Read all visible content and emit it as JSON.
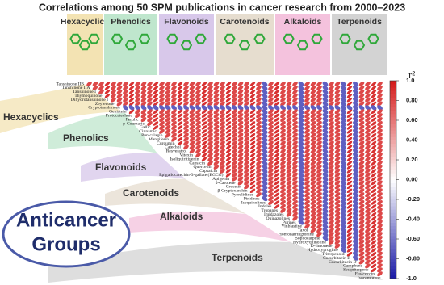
{
  "chart_data": {
    "type": "corrplot",
    "title": "Correlations among 50 SPM publications in cancer research from 2000–2023",
    "groups": [
      {
        "name": "Hexacyclics",
        "color": "#f3e3b3"
      },
      {
        "name": "Phenolics",
        "color": "#bfe6cd"
      },
      {
        "name": "Flavonoids",
        "color": "#d8c8ea"
      },
      {
        "name": "Carotenoids",
        "color": "#e6ddcf"
      },
      {
        "name": "Alkaloids",
        "color": "#f4c2dd"
      },
      {
        "name": "Terpenoids",
        "color": "#d3d3d3"
      }
    ],
    "center_label": [
      "Anticancer",
      "Groups"
    ],
    "labels": [
      "Tanshinone IIB",
      "Tanshinone IIA",
      "Tanshinone I",
      "Thymoquinone",
      "Dihydrotanshinone I",
      "Zeylenone",
      "Cryptotanshinone",
      "Genistein",
      "Protocatechuic",
      "Ferulic",
      "p-Coumaric",
      "Gallic",
      "Cinnamic",
      "Punicalagin",
      "Mangiferin",
      "Curcumin",
      "Catechol",
      "Resveratrol",
      "Vitexin",
      "Isoliquiritigenin",
      "Capsicin",
      "Quercetin",
      "Capsaicin",
      "Epigallocatechin-3-gallate (EGCG)",
      "Apigenin",
      "β-Carotene",
      "Crocetin",
      "β-Cryptoxanthin",
      "Pyrrolidines",
      "Piridines",
      "Isoquinolines",
      "Indoles",
      "Tropanes",
      "Imidazoles",
      "Quinazolines",
      "Purines",
      "Vinblastine",
      "Taxol",
      "Homoharringtonine",
      "Sophocarpine",
      "Hydroxyquinoline",
      "D-limonene",
      "Hydroxyprogline",
      "Triterpenoid",
      "Cucurbitacin B",
      "Cucurbitacin D",
      "Camphene",
      "Sesquiterpene",
      "Fusicoccin",
      "Isocembrene"
    ],
    "values": [
      [
        0.8,
        0.8,
        0.8,
        0.9,
        0.8,
        0.8,
        0.8,
        0.9,
        0.8,
        0.8,
        0.8,
        0.9,
        0.8,
        0.8,
        0.8,
        0.9,
        0.8,
        0.8,
        0.8,
        0.9,
        0.8,
        0.8,
        0.8,
        0.9,
        0.8,
        0.8,
        0.8,
        0.9,
        0.8,
        -0.7,
        0.8,
        0.9,
        0.8,
        0.8,
        0.8,
        -0.7,
        0.8,
        0.8,
        0.8,
        -0.7,
        0.8,
        0.8,
        -0.7,
        0.9,
        -0.7,
        0.8,
        0.8,
        0.9,
        0.8
      ],
      [
        0.8,
        0.8,
        0.9,
        0.8,
        0.8,
        0.8,
        0.9,
        0.8,
        0.8,
        0.8,
        0.9,
        0.8,
        0.8,
        0.8,
        0.9,
        0.8,
        0.8,
        0.8,
        0.9,
        0.8,
        0.8,
        0.8,
        0.9,
        0.8,
        0.8,
        0.8,
        0.9,
        0.8,
        -0.7,
        0.8,
        0.9,
        0.8,
        0.8,
        0.8,
        -0.7,
        0.8,
        0.8,
        0.8,
        -0.7,
        0.8,
        0.8,
        -0.7,
        0.9,
        -0.7,
        0.8,
        0.8,
        0.9,
        0.8
      ],
      [
        0.8,
        0.9,
        0.8,
        0.8,
        0.8,
        0.9,
        0.8,
        0.8,
        0.8,
        0.9,
        0.8,
        0.8,
        0.8,
        0.9,
        0.8,
        0.8,
        0.8,
        0.9,
        0.8,
        0.8,
        0.8,
        0.9,
        0.8,
        0.8,
        0.8,
        0.9,
        0.8,
        -0.7,
        0.8,
        0.9,
        0.8,
        0.8,
        0.8,
        -0.7,
        0.8,
        0.8,
        0.8,
        -0.7,
        0.8,
        0.8,
        -0.7,
        0.9,
        -0.7,
        0.8,
        0.8,
        0.9,
        0.8
      ],
      [
        0.9,
        0.8,
        0.8,
        0.8,
        0.9,
        0.8,
        0.8,
        0.8,
        0.9,
        0.8,
        0.8,
        0.8,
        0.9,
        0.8,
        0.8,
        0.8,
        0.9,
        0.8,
        0.8,
        0.8,
        0.9,
        0.8,
        0.8,
        0.8,
        0.9,
        0.8,
        -0.7,
        0.8,
        0.9,
        0.8,
        0.8,
        0.8,
        -0.7,
        0.8,
        0.8,
        0.8,
        -0.7,
        0.8,
        0.8,
        -0.7,
        0.9,
        -0.7,
        0.8,
        0.8,
        0.9,
        0.8
      ],
      [
        0.8,
        0.8,
        0.8,
        0.9,
        0.8,
        0.8,
        0.8,
        0.9,
        0.8,
        0.8,
        0.8,
        0.9,
        0.8,
        0.8,
        0.8,
        0.9,
        0.8,
        0.8,
        0.8,
        0.9,
        0.8,
        0.8,
        0.8,
        0.9,
        0.8,
        -0.7,
        0.8,
        0.9,
        0.8,
        0.8,
        0.8,
        -0.7,
        0.8,
        0.8,
        0.8,
        -0.7,
        0.8,
        0.8,
        -0.7,
        0.9,
        -0.7,
        0.8,
        0.8,
        0.9,
        0.8
      ],
      [
        0.8,
        0.8,
        0.9,
        0.8,
        0.8,
        0.8,
        0.9,
        0.8,
        0.8,
        0.8,
        0.9,
        0.8,
        0.8,
        0.8,
        0.9,
        0.8,
        0.8,
        0.8,
        0.9,
        0.8,
        0.8,
        0.8,
        0.9,
        0.8,
        -0.7,
        0.8,
        0.9,
        0.8,
        0.8,
        0.8,
        -0.7,
        0.8,
        0.8,
        0.8,
        -0.7,
        0.8,
        0.8,
        -0.7,
        0.9,
        -0.7,
        0.8,
        0.8,
        0.9,
        0.8
      ],
      [
        -0.7,
        -0.7,
        -0.7,
        -0.7,
        -0.7,
        -0.7,
        -0.7,
        -0.7,
        -0.7,
        -0.7,
        -0.7,
        -0.7,
        -0.7,
        -0.7,
        -0.7,
        -0.7,
        -0.7,
        -0.7,
        -0.7,
        -0.7,
        -0.7,
        -0.7,
        -0.7,
        -0.7,
        -0.7,
        -0.7,
        -0.7,
        -0.7,
        -0.7,
        -0.7,
        -0.7,
        -0.7,
        -0.7,
        -0.7,
        -0.7,
        -0.7,
        -0.7,
        -0.7,
        -0.7,
        -0.7,
        -0.7,
        -0.7,
        -0.7
      ],
      [
        0.9,
        0.8,
        0.8,
        0.8,
        0.9,
        0.8,
        0.8,
        0.8,
        0.9,
        0.8,
        0.8,
        0.8,
        0.9,
        0.8,
        0.8,
        0.8,
        0.9,
        0.8,
        0.8,
        0.8,
        0.9,
        0.8,
        -0.7,
        0.8,
        0.9,
        0.8,
        0.8,
        0.8,
        -0.7,
        0.8,
        0.8,
        0.8,
        -0.7,
        0.8,
        0.8,
        -0.7,
        0.9,
        -0.7,
        0.8,
        0.8,
        0.9,
        0.8
      ],
      [
        0.8,
        0.8,
        0.8,
        0.9,
        0.8,
        0.8,
        0.8,
        0.9,
        0.8,
        0.8,
        0.8,
        0.9,
        0.8,
        0.8,
        0.8,
        0.9,
        0.8,
        0.8,
        0.8,
        0.9,
        0.8,
        -0.7,
        0.8,
        0.9,
        0.8,
        0.8,
        0.8,
        -0.7,
        0.8,
        0.8,
        0.8,
        -0.7,
        0.8,
        0.8,
        -0.7,
        0.9,
        -0.7,
        0.8,
        0.8,
        0.9,
        0.8
      ],
      [
        0.8,
        0.8,
        0.9,
        0.8,
        0.8,
        0.8,
        0.9,
        0.8,
        0.8,
        0.8,
        0.9,
        0.8,
        0.8,
        0.8,
        0.9,
        0.8,
        0.8,
        0.8,
        0.9,
        0.8,
        -0.7,
        0.8,
        0.9,
        0.8,
        0.8,
        0.8,
        -0.7,
        0.8,
        0.8,
        0.8,
        -0.7,
        0.8,
        0.8,
        -0.7,
        0.9,
        -0.7,
        0.8,
        0.8,
        0.9,
        0.8
      ],
      [
        0.8,
        0.9,
        0.8,
        0.8,
        0.8,
        0.9,
        0.8,
        0.8,
        0.8,
        0.9,
        0.8,
        0.8,
        0.8,
        0.9,
        0.8,
        0.8,
        0.8,
        0.9,
        0.8,
        -0.7,
        0.8,
        0.9,
        0.8,
        0.8,
        0.8,
        -0.7,
        0.8,
        0.8,
        0.8,
        -0.7,
        0.8,
        0.8,
        -0.7,
        0.9,
        -0.7,
        0.8,
        0.8,
        0.9,
        0.8
      ],
      [
        0.9,
        0.8,
        0.8,
        0.8,
        0.9,
        0.8,
        0.8,
        0.8,
        0.9,
        0.8,
        0.8,
        0.8,
        0.9,
        0.8,
        0.8,
        0.8,
        0.9,
        0.8,
        -0.7,
        0.8,
        0.9,
        0.8,
        0.8,
        0.8,
        -0.7,
        0.8,
        0.8,
        0.8,
        -0.7,
        0.8,
        0.8,
        -0.7,
        0.9,
        -0.7,
        0.8,
        0.8,
        0.9,
        0.8
      ],
      [
        0.8,
        0.8,
        0.8,
        0.9,
        0.8,
        0.8,
        0.8,
        0.9,
        0.8,
        0.8,
        0.8,
        0.9,
        0.8,
        0.8,
        0.8,
        0.9,
        0.8,
        -0.7,
        0.8,
        0.9,
        0.8,
        0.8,
        0.8,
        -0.7,
        0.8,
        0.8,
        0.8,
        -0.7,
        0.8,
        0.8,
        -0.7,
        0.9,
        -0.7,
        0.8,
        0.8,
        0.9,
        0.8
      ],
      [
        0.8,
        0.8,
        0.9,
        0.8,
        0.8,
        0.8,
        0.9,
        0.8,
        0.8,
        0.8,
        0.9,
        0.8,
        0.8,
        0.8,
        0.9,
        0.8,
        -0.7,
        0.8,
        0.9,
        0.8,
        0.8,
        0.8,
        -0.7,
        0.8,
        0.8,
        0.8,
        -0.7,
        0.8,
        0.8,
        -0.7,
        0.9,
        -0.7,
        0.8,
        0.8,
        0.9,
        0.8
      ],
      [
        0.8,
        0.9,
        0.8,
        0.8,
        0.8,
        0.9,
        0.8,
        0.8,
        0.8,
        0.9,
        0.8,
        0.8,
        0.8,
        0.9,
        0.8,
        -0.7,
        0.8,
        0.9,
        0.8,
        0.8,
        0.8,
        -0.7,
        0.8,
        0.8,
        0.8,
        -0.7,
        0.8,
        0.8,
        -0.7,
        0.9,
        -0.7,
        0.8,
        0.8,
        0.9,
        0.8
      ],
      [
        0.9,
        0.8,
        0.8,
        0.8,
        0.9,
        0.8,
        0.8,
        0.8,
        0.9,
        0.8,
        0.8,
        0.8,
        0.9,
        0.8,
        -0.7,
        0.8,
        0.9,
        0.8,
        0.8,
        0.8,
        -0.7,
        0.8,
        0.8,
        0.8,
        -0.7,
        0.8,
        0.8,
        -0.7,
        0.9,
        -0.7,
        0.8,
        0.8,
        0.9,
        0.8
      ],
      [
        0.8,
        0.8,
        0.8,
        0.9,
        0.8,
        0.8,
        0.8,
        0.9,
        0.8,
        0.8,
        0.8,
        0.9,
        0.8,
        -0.7,
        0.8,
        0.9,
        0.8,
        0.8,
        0.8,
        -0.7,
        0.8,
        0.8,
        0.8,
        -0.7,
        0.8,
        0.8,
        -0.7,
        0.9,
        -0.7,
        0.8,
        0.8,
        0.9,
        0.8
      ],
      [
        0.8,
        0.8,
        0.9,
        0.8,
        0.8,
        0.8,
        0.9,
        0.8,
        0.8,
        0.8,
        0.9,
        0.8,
        -0.7,
        0.8,
        0.9,
        0.8,
        0.8,
        0.8,
        -0.7,
        0.8,
        0.8,
        0.8,
        -0.7,
        0.8,
        0.8,
        -0.7,
        0.9,
        -0.7,
        0.8,
        0.8,
        0.9,
        0.8
      ],
      [
        0.8,
        0.9,
        0.8,
        0.8,
        0.8,
        0.9,
        0.8,
        0.8,
        0.8,
        0.9,
        0.8,
        -0.7,
        0.8,
        0.9,
        0.8,
        0.8,
        0.8,
        -0.7,
        0.8,
        0.8,
        0.8,
        -0.7,
        0.8,
        0.8,
        -0.7,
        0.9,
        -0.7,
        0.8,
        0.8,
        0.9,
        0.8
      ],
      [
        0.9,
        0.8,
        0.8,
        0.8,
        0.9,
        0.8,
        0.8,
        0.8,
        0.9,
        0.8,
        -0.7,
        0.8,
        0.9,
        0.8,
        0.8,
        0.8,
        -0.7,
        0.8,
        0.8,
        0.8,
        -0.7,
        0.8,
        0.8,
        -0.7,
        0.9,
        -0.7,
        0.8,
        0.8,
        0.9,
        0.8
      ],
      [
        0.8,
        0.8,
        0.8,
        0.9,
        0.8,
        0.8,
        0.8,
        0.9,
        0.8,
        -0.7,
        0.8,
        0.9,
        0.8,
        0.8,
        0.8,
        -0.7,
        0.8,
        0.8,
        0.8,
        -0.7,
        0.8,
        0.8,
        -0.7,
        0.9,
        -0.7,
        0.8,
        0.8,
        0.9,
        0.8
      ],
      [
        0.8,
        0.8,
        0.9,
        0.8,
        0.8,
        0.8,
        0.9,
        0.8,
        -0.7,
        0.8,
        0.9,
        0.8,
        0.8,
        0.8,
        -0.7,
        0.8,
        0.8,
        0.8,
        -0.7,
        0.8,
        0.8,
        -0.7,
        0.9,
        -0.7,
        0.8,
        0.8,
        0.9,
        0.8
      ],
      [
        0.8,
        0.9,
        0.8,
        0.8,
        0.8,
        0.9,
        0.8,
        -0.7,
        0.8,
        0.9,
        0.8,
        0.8,
        0.8,
        -0.7,
        0.8,
        0.8,
        0.8,
        -0.7,
        0.8,
        0.8,
        -0.7,
        0.9,
        -0.7,
        0.8,
        0.8,
        0.9,
        0.8
      ],
      [
        0.9,
        0.8,
        0.8,
        0.8,
        0.9,
        0.8,
        -0.7,
        0.8,
        0.9,
        0.8,
        0.8,
        0.8,
        -0.7,
        0.8,
        0.8,
        0.8,
        -0.7,
        0.8,
        0.8,
        -0.7,
        0.9,
        -0.7,
        0.8,
        0.8,
        0.9,
        0.8
      ],
      [
        0.8,
        0.8,
        0.8,
        0.9,
        0.8,
        -0.7,
        0.8,
        0.9,
        0.8,
        0.8,
        0.8,
        -0.7,
        0.8,
        0.8,
        0.8,
        -0.7,
        0.8,
        0.8,
        -0.7,
        0.9,
        -0.7,
        0.8,
        0.8,
        0.9,
        0.8
      ],
      [
        0.8,
        0.8,
        0.9,
        0.8,
        -0.7,
        0.8,
        0.9,
        0.8,
        0.8,
        0.8,
        -0.7,
        0.8,
        0.8,
        0.8,
        -0.7,
        0.8,
        0.8,
        -0.7,
        0.9,
        -0.7,
        0.8,
        0.8,
        0.9,
        0.8
      ],
      [
        0.8,
        0.9,
        0.8,
        -0.7,
        0.8,
        0.9,
        0.8,
        0.8,
        0.8,
        -0.7,
        0.8,
        0.8,
        0.8,
        -0.7,
        0.8,
        0.8,
        -0.7,
        0.9,
        -0.7,
        0.8,
        0.8,
        0.9,
        0.8
      ],
      [
        0.9,
        0.8,
        -0.7,
        0.8,
        0.9,
        0.8,
        0.8,
        0.8,
        -0.7,
        0.8,
        0.8,
        0.8,
        -0.7,
        0.8,
        0.8,
        -0.7,
        0.9,
        -0.7,
        0.8,
        0.8,
        0.9,
        0.8
      ],
      [
        0.8,
        -0.7,
        0.8,
        0.9,
        0.8,
        0.8,
        0.8,
        -0.7,
        0.8,
        0.8,
        0.8,
        -0.7,
        0.8,
        0.8,
        -0.7,
        0.9,
        -0.7,
        0.8,
        0.8,
        0.9,
        0.8
      ],
      [
        -0.7,
        0.8,
        0.9,
        0.8,
        0.8,
        0.8,
        -0.7,
        0.8,
        0.8,
        0.8,
        -0.7,
        0.8,
        0.8,
        -0.7,
        0.9,
        -0.7,
        0.8,
        0.8,
        0.9,
        0.8
      ],
      [
        0.8,
        0.9,
        0.8,
        0.8,
        0.8,
        -0.7,
        0.8,
        0.8,
        0.8,
        -0.7,
        0.8,
        0.8,
        -0.7,
        0.9,
        -0.7,
        0.8,
        0.8,
        0.9,
        0.8
      ],
      [
        0.9,
        0.8,
        0.8,
        0.8,
        -0.7,
        0.8,
        0.8,
        0.8,
        -0.7,
        0.8,
        0.8,
        -0.7,
        0.9,
        -0.7,
        0.8,
        0.8,
        0.9,
        0.8
      ],
      [
        0.8,
        0.8,
        0.8,
        -0.7,
        0.8,
        0.8,
        0.8,
        -0.7,
        0.8,
        0.8,
        -0.7,
        0.9,
        -0.7,
        0.8,
        0.8,
        0.9,
        0.8
      ],
      [
        0.8,
        0.8,
        -0.7,
        0.8,
        0.8,
        0.8,
        -0.7,
        0.8,
        0.8,
        -0.7,
        0.9,
        -0.7,
        0.8,
        0.8,
        0.9,
        0.8
      ],
      [
        0.8,
        -0.7,
        0.8,
        0.8,
        0.8,
        -0.7,
        0.8,
        0.8,
        -0.7,
        0.9,
        -0.7,
        0.8,
        0.8,
        0.9,
        0.8
      ],
      [
        -0.7,
        0.8,
        0.8,
        0.8,
        -0.7,
        0.8,
        0.8,
        -0.7,
        0.9,
        -0.7,
        0.8,
        0.8,
        0.9,
        0.8
      ],
      [
        0.8,
        0.8,
        0.8,
        -0.7,
        0.8,
        0.8,
        -0.7,
        0.9,
        -0.7,
        0.8,
        0.8,
        0.9,
        0.8
      ],
      [
        0.8,
        0.8,
        -0.7,
        0.8,
        0.8,
        -0.7,
        0.9,
        -0.7,
        0.8,
        0.8,
        0.9,
        0.8
      ],
      [
        0.8,
        -0.7,
        0.8,
        0.8,
        -0.7,
        0.9,
        -0.7,
        0.8,
        0.8,
        0.9,
        0.8
      ],
      [
        -0.7,
        0.8,
        0.8,
        -0.7,
        0.9,
        -0.7,
        0.8,
        0.8,
        0.9,
        0.8
      ],
      [
        0.8,
        0.8,
        -0.7,
        0.9,
        -0.7,
        0.8,
        0.8,
        0.9,
        0.8
      ],
      [
        0.8,
        -0.7,
        0.9,
        -0.7,
        0.8,
        0.8,
        0.9,
        0.8
      ],
      [
        -0.7,
        0.9,
        -0.7,
        0.8,
        0.8,
        0.9,
        0.8
      ],
      [
        0.9,
        -0.7,
        0.8,
        0.8,
        0.9,
        0.8
      ],
      [
        -0.7,
        0.8,
        0.8,
        0.9,
        0.8
      ],
      [
        0.8,
        0.8,
        0.9,
        0.8
      ],
      [
        0.8,
        0.9,
        0.8
      ],
      [
        0.9,
        0.8
      ],
      [
        0.8
      ]
    ],
    "colorbar_title": "r²",
    "clim": [
      -1,
      1
    ],
    "cticks": [
      {
        "value": 1,
        "label": "1.0"
      },
      {
        "value": 0.8,
        "label": "0.80"
      },
      {
        "value": 0.6,
        "label": "0.60"
      },
      {
        "value": 0.4,
        "label": "0.40"
      },
      {
        "value": 0.2,
        "label": "0.20"
      },
      {
        "value": 0,
        "label": "0.00"
      },
      {
        "value": -0.2,
        "label": "-0.20"
      },
      {
        "value": -0.4,
        "label": "-0.40"
      },
      {
        "value": -0.6,
        "label": "-0.60"
      },
      {
        "value": -0.8,
        "label": "-0.80"
      },
      {
        "value": -1,
        "label": "-1.0"
      }
    ],
    "low_color": "#1a1aa6",
    "mid_color": "#ffffff",
    "high_color": "#d41a1a"
  }
}
